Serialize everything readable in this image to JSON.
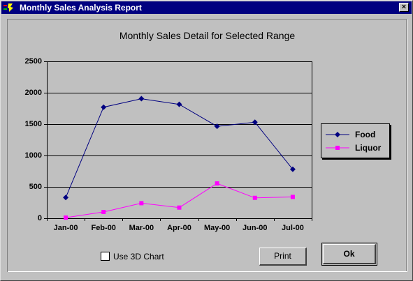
{
  "window": {
    "title": "Monthly Sales Analysis Report",
    "close_glyph": "×"
  },
  "chart_data": {
    "type": "line",
    "title": "Monthly Sales Detail for Selected Range",
    "xlabel": "",
    "ylabel": "",
    "categories": [
      "Jan-00",
      "Feb-00",
      "Mar-00",
      "Apr-00",
      "May-00",
      "Jun-00",
      "Jul-00"
    ],
    "y_ticks": [
      0,
      500,
      1000,
      1500,
      2000,
      2500
    ],
    "ylim": [
      0,
      2500
    ],
    "grid": true,
    "legend": "right",
    "series": [
      {
        "name": "Food",
        "values": [
          330,
          1770,
          1905,
          1815,
          1465,
          1530,
          780
        ],
        "color": "#000080",
        "marker": "diamond"
      },
      {
        "name": "Liquor",
        "values": [
          10,
          100,
          240,
          170,
          555,
          325,
          340
        ],
        "color": "#ff00ff",
        "marker": "square"
      }
    ]
  },
  "controls": {
    "use3d_label": "Use 3D Chart",
    "use3d_checked": false,
    "print_label": "Print",
    "ok_label": "Ok"
  },
  "icons": {
    "app": "app-logo-icon",
    "close": "close-icon"
  }
}
